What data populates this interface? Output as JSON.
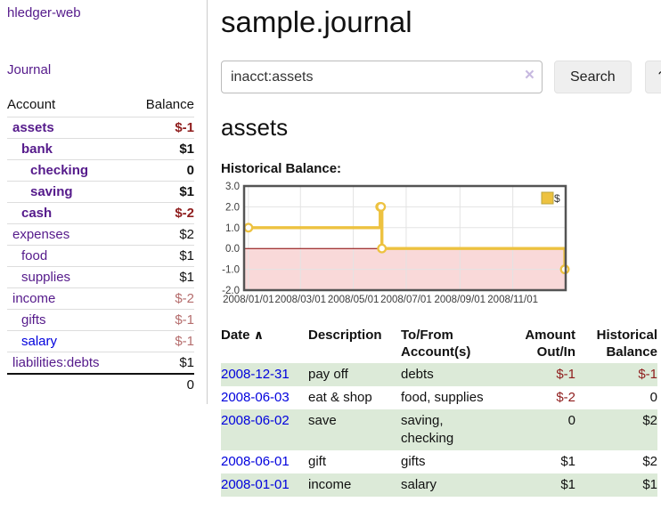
{
  "sidebar": {
    "app_title": "hledger-web",
    "journal_link": "Journal",
    "table": {
      "headers": {
        "account": "Account",
        "balance": "Balance"
      },
      "rows": [
        {
          "account": "assets",
          "balance": "$-1",
          "indent": 0,
          "bold": true,
          "neg": "strong",
          "link_color": "purple"
        },
        {
          "account": "bank",
          "balance": "$1",
          "indent": 1,
          "bold": true,
          "neg": "none",
          "link_color": "purple"
        },
        {
          "account": "checking",
          "balance": "0",
          "indent": 2,
          "bold": true,
          "neg": "none",
          "link_color": "purple"
        },
        {
          "account": "saving",
          "balance": "$1",
          "indent": 2,
          "bold": true,
          "neg": "none",
          "link_color": "purple"
        },
        {
          "account": "cash",
          "balance": "$-2",
          "indent": 1,
          "bold": true,
          "neg": "strong",
          "link_color": "purple"
        },
        {
          "account": "expenses",
          "balance": "$2",
          "indent": 0,
          "bold": false,
          "neg": "none",
          "link_color": "purple"
        },
        {
          "account": "food",
          "balance": "$1",
          "indent": 1,
          "bold": false,
          "neg": "none",
          "link_color": "purple"
        },
        {
          "account": "supplies",
          "balance": "$1",
          "indent": 1,
          "bold": false,
          "neg": "none",
          "link_color": "purple"
        },
        {
          "account": "income",
          "balance": "$-2",
          "indent": 0,
          "bold": false,
          "neg": "muted",
          "link_color": "purple"
        },
        {
          "account": "gifts",
          "balance": "$-1",
          "indent": 1,
          "bold": false,
          "neg": "muted",
          "link_color": "purple"
        },
        {
          "account": "salary",
          "balance": "$-1",
          "indent": 1,
          "bold": false,
          "neg": "muted",
          "link_color": "blue"
        },
        {
          "account": "liabilities:debts",
          "balance": "$1",
          "indent": 0,
          "bold": false,
          "neg": "none",
          "link_color": "purple"
        }
      ],
      "total": "0"
    }
  },
  "header": {
    "title": "sample.journal"
  },
  "search": {
    "value": "inacct:assets",
    "clear_icon": "×",
    "button_label": "Search",
    "help_label": "?"
  },
  "account_page": {
    "heading": "assets",
    "chart_label": "Historical Balance:"
  },
  "chart_data": {
    "type": "line",
    "step": true,
    "title": "Historical Balance:",
    "series": [
      {
        "name": "$",
        "color": "#edc240",
        "points": [
          [
            "2008-01-01",
            1
          ],
          [
            "2008-06-01",
            2
          ],
          [
            "2008-06-02",
            2
          ],
          [
            "2008-06-03",
            0
          ],
          [
            "2008-12-31",
            -1
          ]
        ]
      }
    ],
    "x_ticks": [
      "2008/01/01",
      "2008/03/01",
      "2008/05/01",
      "2008/07/01",
      "2008/09/01",
      "2008/11/01"
    ],
    "y_ticks": [
      3.0,
      2.0,
      1.0,
      0.0,
      -1.0,
      -2.0
    ],
    "ylim": [
      -2,
      3
    ],
    "x_domain": [
      "2007-12-27",
      "2009-01-01"
    ],
    "legend_label": "$",
    "legend_position": "top-right",
    "grid": true,
    "negative_region_fill": "#f9d9d9",
    "zero_line_color": "#8b0000",
    "grid_color": "#e3e3e3",
    "border_color": "#545454"
  },
  "transactions": {
    "sort_icon": "∧",
    "headers": {
      "date": [
        "Date"
      ],
      "description": [
        "Description"
      ],
      "tofrom": [
        "To/From",
        "Account(s)"
      ],
      "amount": [
        "Amount",
        "Out/In"
      ],
      "historical": [
        "Historical",
        "Balance"
      ]
    },
    "rows": [
      {
        "date": "2008-12-31",
        "description": "pay off",
        "accounts": "debts",
        "amount": "$-1",
        "balance": "$-1"
      },
      {
        "date": "2008-06-03",
        "description": "eat & shop",
        "accounts": "food, supplies",
        "amount": "$-2",
        "balance": "0"
      },
      {
        "date": "2008-06-02",
        "description": "save",
        "accounts": "saving, checking",
        "amount": "0",
        "balance": "$2"
      },
      {
        "date": "2008-06-01",
        "description": "gift",
        "accounts": "gifts",
        "amount": "$1",
        "balance": "$2"
      },
      {
        "date": "2008-01-01",
        "description": "income",
        "accounts": "salary",
        "amount": "$1",
        "balance": "$1"
      }
    ]
  },
  "colors": {
    "link_purple": "#551a8b",
    "link_blue": "#0000dd",
    "negative_strong": "#8f1d1d",
    "negative_muted": "#b56d6d",
    "row_stripe_green": "#dcead8",
    "series_gold": "#edc240",
    "negative_region_pink": "#f9d9d9",
    "zero_line_red": "#8b0000"
  }
}
